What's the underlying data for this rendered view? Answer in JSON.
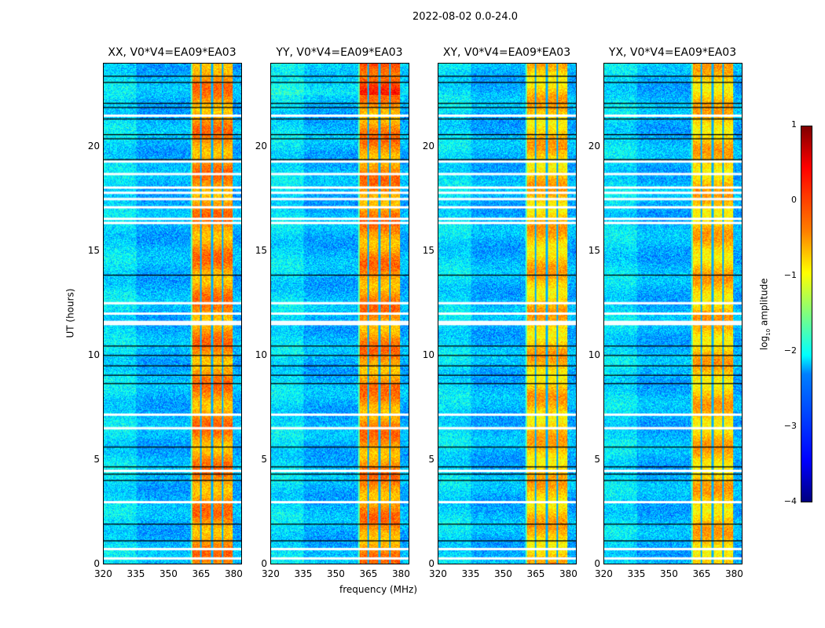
{
  "figure": {
    "suptitle": "2022-08-02 0.0-24.0",
    "ylabel": "UT (hours)",
    "xlabel": "frequency (MHz)"
  },
  "chart_data": {
    "type": "heatmap",
    "panels": [
      {
        "title": "XX, V0*V4=EA09*EA03"
      },
      {
        "title": "YY, V0*V4=EA09*EA03"
      },
      {
        "title": "XY, V0*V4=EA09*EA03"
      },
      {
        "title": "YX, V0*V4=EA09*EA03"
      }
    ],
    "xlim": [
      320,
      384
    ],
    "ylim": [
      0,
      24
    ],
    "xticks": [
      "320",
      "335",
      "350",
      "365",
      "380"
    ],
    "xtick_values": [
      320,
      335,
      350,
      365,
      380
    ],
    "yticks": [
      "0",
      "5",
      "10",
      "15",
      "20"
    ],
    "ytick_values": [
      0,
      5,
      10,
      15,
      20
    ],
    "rfi_band_mhz": [
      360.4,
      380
    ],
    "band_edges_mhz": [
      365.1,
      370.2,
      375.2
    ],
    "flagged_hours_white": [
      21.5,
      19.3,
      18.7,
      18.05,
      17.8,
      17.5,
      17.1,
      16.55,
      16.35,
      12.5,
      12.0,
      11.6,
      11.5,
      7.15,
      6.5,
      4.45,
      2.95,
      0.7,
      0.25
    ],
    "flagged_hours_black": [
      23.4,
      23.1,
      22.1,
      21.9,
      21.35,
      20.6,
      20.4,
      19.4,
      13.85,
      10.45,
      10.0,
      9.5,
      9.05,
      8.65,
      5.6,
      4.65,
      4.3,
      4.0,
      1.9,
      1.1
    ],
    "colorbar": {
      "label": "log10 amplitude",
      "label_main": "log",
      "label_sub": "10",
      "label_rest": " amplitude",
      "range": [
        -4,
        1
      ],
      "ticks": [
        "1",
        "0",
        "−1",
        "−2",
        "−3",
        "−4"
      ],
      "tick_values": [
        1,
        0,
        -1,
        -2,
        -3,
        -4
      ]
    }
  }
}
